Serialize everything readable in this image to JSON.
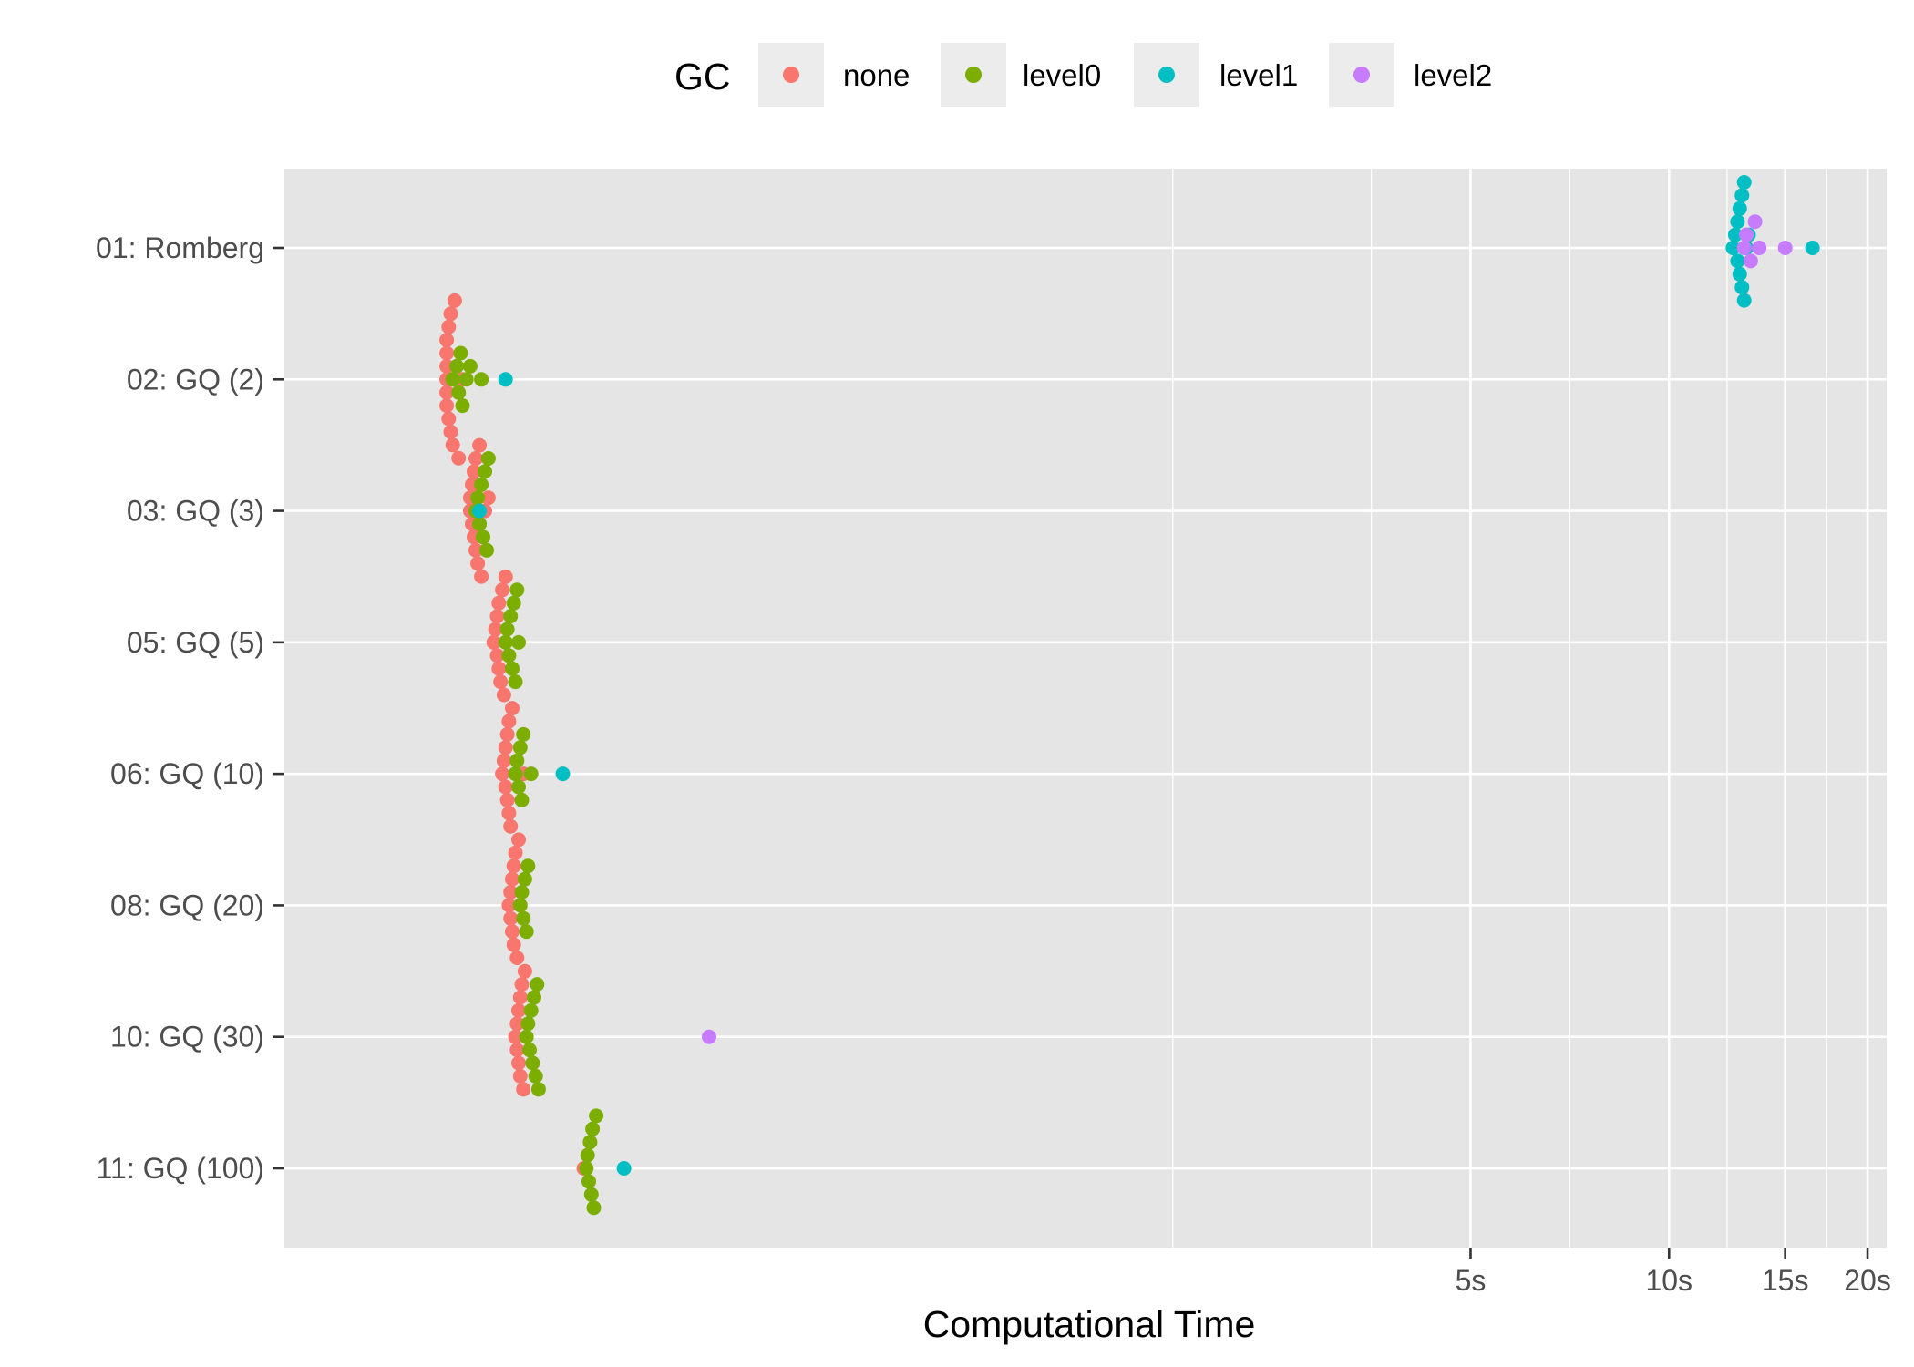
{
  "chart_data": {
    "type": "scatter",
    "xlabel": "Computational Time",
    "ylabel": "",
    "x_scale": "log",
    "x_ticks": [
      {
        "value": 5,
        "label": "5s"
      },
      {
        "value": 10,
        "label": "10s"
      },
      {
        "value": 15,
        "label": "15s"
      },
      {
        "value": 20,
        "label": "20s"
      }
    ],
    "xlim_log10": [
      -1.1,
      1.33
    ],
    "categories": [
      "01: Romberg",
      "02: GQ (2)",
      "03: GQ (3)",
      "05: GQ (5)",
      "06: GQ (10)",
      "08: GQ (20)",
      "10: GQ (30)",
      "11: GQ (100)"
    ],
    "legend": {
      "title": "GC",
      "position": "top",
      "entries": [
        "none",
        "level0",
        "level1",
        "level2"
      ]
    },
    "grid": true,
    "colors": {
      "none": "#f8766d",
      "level0": "#7cae00",
      "level1": "#00bfc4",
      "level2": "#c77cff",
      "panel_background": "#e5e5e5",
      "grid_line": "#ffffff"
    },
    "series": [
      {
        "name": "none",
        "points": [
          {
            "category": "02: GQ (2)",
            "x": [
              0.14,
              0.14,
              0.14,
              0.14,
              0.14,
              0.14,
              0.141,
              0.141,
              0.142,
              0.142,
              0.143,
              0.144,
              0.146,
              0.148
            ]
          },
          {
            "category": "03: GQ (3)",
            "x": [
              0.152,
              0.152,
              0.153,
              0.153,
              0.154,
              0.154,
              0.155,
              0.155,
              0.156,
              0.157,
              0.158,
              0.16,
              0.162
            ]
          },
          {
            "category": "05: GQ (5)",
            "x": [
              0.165,
              0.166,
              0.167,
              0.167,
              0.168,
              0.168,
              0.169,
              0.17,
              0.171,
              0.172
            ]
          },
          {
            "category": "06: GQ (10)",
            "x": [
              0.17,
              0.171,
              0.172,
              0.172,
              0.173,
              0.173,
              0.174,
              0.174,
              0.175,
              0.176,
              0.183
            ]
          },
          {
            "category": "08: GQ (20)",
            "x": [
              0.174,
              0.175,
              0.175,
              0.176,
              0.176,
              0.177,
              0.177,
              0.178,
              0.179,
              0.18
            ]
          },
          {
            "category": "10: GQ (30)",
            "x": [
              0.178,
              0.179,
              0.179,
              0.18,
              0.18,
              0.181,
              0.181,
              0.182,
              0.183,
              0.184
            ]
          },
          {
            "category": "11: GQ (100)",
            "x": [
              0.226
            ]
          }
        ]
      },
      {
        "name": "level0",
        "points": [
          {
            "category": "02: GQ (2)",
            "x": [
              0.143,
              0.145,
              0.146,
              0.147,
              0.148,
              0.15,
              0.152,
              0.158
            ]
          },
          {
            "category": "03: GQ (3)",
            "x": [
              0.155,
              0.156,
              0.157,
              0.158,
              0.159,
              0.16,
              0.161,
              0.162
            ]
          },
          {
            "category": "05: GQ (5)",
            "x": [
              0.172,
              0.173,
              0.174,
              0.175,
              0.176,
              0.177,
              0.178,
              0.179,
              0.18
            ]
          },
          {
            "category": "06: GQ (10)",
            "x": [
              0.178,
              0.179,
              0.18,
              0.181,
              0.182,
              0.183,
              0.188
            ]
          },
          {
            "category": "08: GQ (20)",
            "x": [
              0.181,
              0.182,
              0.183,
              0.184,
              0.185,
              0.186
            ]
          },
          {
            "category": "10: GQ (30)",
            "x": [
              0.185,
              0.186,
              0.187,
              0.188,
              0.189,
              0.19,
              0.191,
              0.192,
              0.193
            ]
          },
          {
            "category": "11: GQ (100)",
            "x": [
              0.228,
              0.229,
              0.23,
              0.231,
              0.232,
              0.233,
              0.234,
              0.236
            ]
          }
        ]
      },
      {
        "name": "level1",
        "points": [
          {
            "category": "01: Romberg",
            "x": [
              12.5,
              12.6,
              12.7,
              12.7,
              12.8,
              12.8,
              12.9,
              12.9,
              13.0,
              13.0,
              13.1,
              13.2,
              16.5
            ]
          },
          {
            "category": "02: GQ (2)",
            "x": [
              0.172
            ]
          },
          {
            "category": "03: GQ (3)",
            "x": [
              0.157
            ]
          },
          {
            "category": "06: GQ (10)",
            "x": [
              0.21
            ]
          },
          {
            "category": "11: GQ (100)",
            "x": [
              0.26
            ]
          }
        ]
      },
      {
        "name": "level2",
        "points": [
          {
            "category": "01: Romberg",
            "x": [
              13.0,
              13.1,
              13.3,
              13.5,
              13.7,
              15.0
            ]
          },
          {
            "category": "10: GQ (30)",
            "x": [
              0.35
            ]
          }
        ]
      }
    ]
  }
}
